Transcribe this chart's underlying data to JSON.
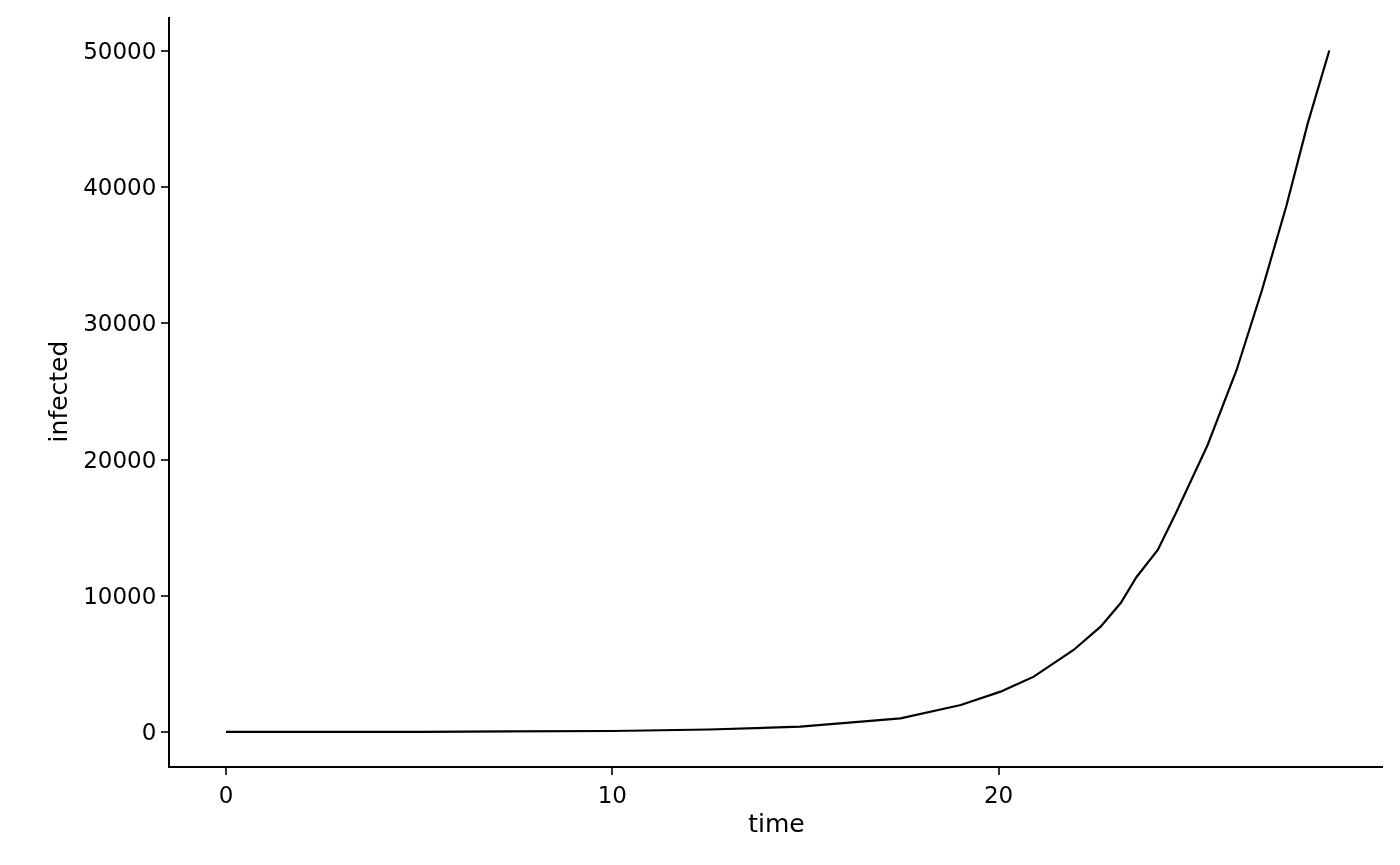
{
  "chart_data": {
    "type": "line",
    "xlabel": "time",
    "ylabel": "infected",
    "x": [
      0,
      5,
      10,
      12.5,
      14.87,
      17.46,
      19.02,
      20.05,
      20.91,
      21.94,
      22.64,
      23.16,
      23.57,
      24.12,
      24.59,
      25.41,
      26.16,
      26.81,
      27.45,
      28.0,
      28.56
    ],
    "series": [
      {
        "color": "#000000",
        "values": [
          1,
          10,
          70,
          180,
          390,
          1000,
          1980,
          2960,
          4060,
          6020,
          7730,
          9470,
          11380,
          13360,
          16080,
          21070,
          26580,
          32380,
          38640,
          44670,
          50040
        ]
      }
    ],
    "xlim": [
      -1.45,
      29.95
    ],
    "xticks": [
      0,
      10,
      20
    ],
    "ylim": [
      -2500,
      52500
    ],
    "yticks": [
      0,
      10000,
      20000,
      30000,
      40000,
      50000
    ],
    "grid": false,
    "legend": false,
    "marker": "none",
    "line_style": "solid"
  }
}
